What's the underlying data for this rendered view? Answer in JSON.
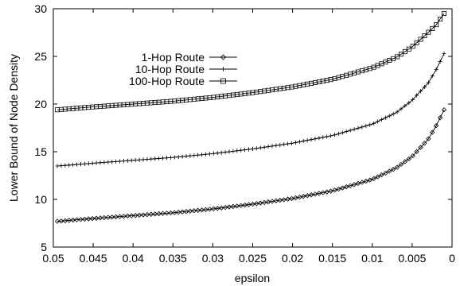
{
  "chart_data": {
    "type": "line",
    "title": "",
    "xlabel": "epsilon",
    "ylabel": "Lower Bound of Node Density",
    "xlim": [
      0.05,
      0
    ],
    "ylim": [
      5,
      30
    ],
    "x_reversed": true,
    "grid": false,
    "legend_position": "upper-left",
    "x_ticks": [
      "0.05",
      "0.045",
      "0.04",
      "0.035",
      "0.03",
      "0.025",
      "0.02",
      "0.015",
      "0.01",
      "0.005",
      "0"
    ],
    "y_ticks": [
      "5",
      "10",
      "15",
      "20",
      "25",
      "30"
    ],
    "series": [
      {
        "name": "1-Hop Route",
        "marker": "diamond",
        "x": [
          0.0495,
          0.045,
          0.04,
          0.035,
          0.03,
          0.025,
          0.02,
          0.015,
          0.01,
          0.007,
          0.005,
          0.003,
          0.002,
          0.001
        ],
        "y": [
          7.7,
          8.0,
          8.3,
          8.6,
          9.0,
          9.5,
          10.1,
          10.9,
          12.1,
          13.3,
          14.5,
          16.3,
          17.7,
          19.4
        ]
      },
      {
        "name": "10-Hop Route",
        "marker": "plus",
        "x": [
          0.0495,
          0.045,
          0.04,
          0.035,
          0.03,
          0.025,
          0.02,
          0.015,
          0.01,
          0.007,
          0.005,
          0.003,
          0.002,
          0.001
        ],
        "y": [
          13.5,
          13.8,
          14.1,
          14.4,
          14.8,
          15.3,
          15.9,
          16.7,
          17.9,
          19.1,
          20.4,
          22.2,
          23.6,
          25.3
        ]
      },
      {
        "name": "100-Hop Route",
        "marker": "square",
        "x": [
          0.0495,
          0.045,
          0.04,
          0.035,
          0.03,
          0.025,
          0.02,
          0.015,
          0.01,
          0.007,
          0.005,
          0.003,
          0.002,
          0.001
        ],
        "y": [
          19.4,
          19.7,
          20.0,
          20.3,
          20.7,
          21.2,
          21.8,
          22.6,
          23.8,
          24.9,
          26.0,
          27.5,
          28.3,
          29.5
        ]
      }
    ]
  }
}
